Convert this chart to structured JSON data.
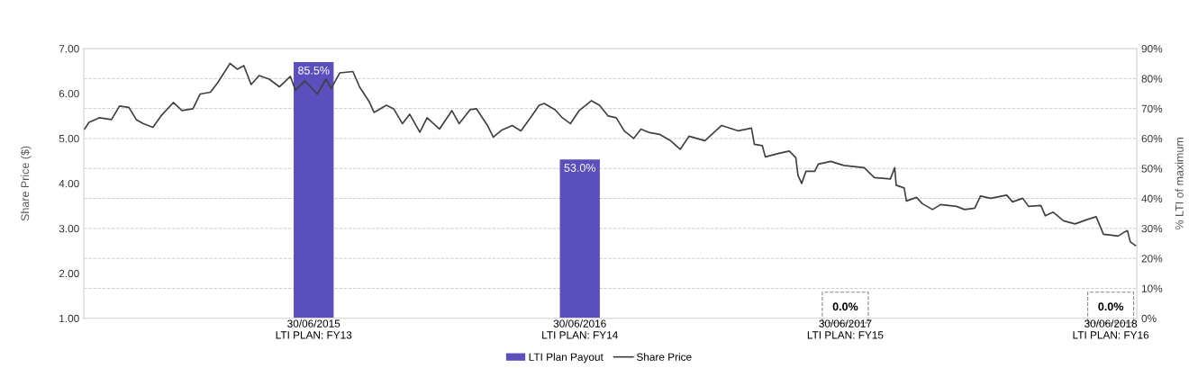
{
  "chart_data": {
    "type": "line",
    "ylabel": "Share Price ($)",
    "y2label": "% LTI of maximum",
    "xlim": [
      "2014-08-18",
      "2018-08-05"
    ],
    "xticks": [
      {
        "value": "2015-06-30",
        "label": "30/06/2015\nLTI PLAN: FY13"
      },
      {
        "value": "2016-06-30",
        "label": "30/06/2016\nLTI PLAN: FY14"
      },
      {
        "value": "2017-06-30",
        "label": "30/06/2017\nLTI PLAN: FY15"
      },
      {
        "value": "2018-06-30",
        "label": "30/06/2018\nLTI PLAN: FY16"
      }
    ],
    "ylim": [
      1,
      7
    ],
    "yticks": [
      {
        "value": 1,
        "label": "1.00"
      },
      {
        "value": 2,
        "label": "2.00"
      },
      {
        "value": 3,
        "label": "3.00"
      },
      {
        "value": 4,
        "label": "4.00"
      },
      {
        "value": 5,
        "label": "5.00"
      },
      {
        "value": 6,
        "label": "6.00"
      },
      {
        "value": 7,
        "label": "7.00"
      }
    ],
    "y2lim": [
      0,
      90
    ],
    "y2ticks": [
      {
        "value": 0,
        "label": "0%"
      },
      {
        "value": 10,
        "label": "10%"
      },
      {
        "value": 20,
        "label": "20%"
      },
      {
        "value": 30,
        "label": "30%"
      },
      {
        "value": 40,
        "label": "40%"
      },
      {
        "value": 50,
        "label": "50%"
      },
      {
        "value": 60,
        "label": "60%"
      },
      {
        "value": 70,
        "label": "70%"
      },
      {
        "value": 80,
        "label": "80%"
      },
      {
        "value": 90,
        "label": "90%"
      }
    ],
    "grid": true,
    "legend": "bottom",
    "marker": "none",
    "line_style": "solid",
    "series": [
      {
        "name": "LTI Plan Payout",
        "type": "bar",
        "axis": "y2",
        "color": "#5b4fbe",
        "x": [
          "2015-06-30",
          "2016-06-30",
          "2017-06-30",
          "2018-06-30"
        ],
        "values": [
          85.5,
          53.0,
          0,
          0
        ],
        "value_labels": [
          "85.5%",
          "53.0%",
          "0.0%",
          "0.0%"
        ]
      },
      {
        "name": "Share Price",
        "color": "#404040",
        "x": [
          "2014-08-19",
          "2014-08-25",
          "2014-09-08",
          "2014-09-25",
          "2014-10-06",
          "2014-10-19",
          "2014-10-29",
          "2014-11-08",
          "2014-11-21",
          "2014-12-02",
          "2014-12-19",
          "2014-12-31",
          "2015-01-15",
          "2015-01-25",
          "2015-02-08",
          "2015-02-18",
          "2015-03-07",
          "2015-03-17",
          "2015-03-26",
          "2015-04-05",
          "2015-04-16",
          "2015-04-30",
          "2015-05-14",
          "2015-05-29",
          "2015-06-05",
          "2015-06-18",
          "2015-07-05",
          "2015-07-17",
          "2015-07-24",
          "2015-08-05",
          "2015-08-23",
          "2015-09-01",
          "2015-09-14",
          "2015-09-21",
          "2015-10-08",
          "2015-10-18",
          "2015-10-30",
          "2015-11-09",
          "2015-11-23",
          "2015-12-03",
          "2015-12-20",
          "2016-01-06",
          "2016-01-16",
          "2016-01-31",
          "2016-02-09",
          "2016-02-24",
          "2016-03-03",
          "2016-03-15",
          "2016-03-29",
          "2016-04-10",
          "2016-04-23",
          "2016-05-05",
          "2016-05-12",
          "2016-05-27",
          "2016-06-06",
          "2016-06-17",
          "2016-06-29",
          "2016-07-16",
          "2016-07-27",
          "2016-08-08",
          "2016-08-19",
          "2016-08-30",
          "2016-09-12",
          "2016-09-22",
          "2016-10-04",
          "2016-10-18",
          "2016-11-01",
          "2016-11-15",
          "2016-11-27",
          "2016-12-19",
          "2017-01-11",
          "2017-02-03",
          "2017-02-21",
          "2017-02-25",
          "2017-03-08",
          "2017-03-12",
          "2017-03-31",
          "2017-04-14",
          "2017-04-23",
          "2017-04-26",
          "2017-05-01",
          "2017-05-07",
          "2017-05-19",
          "2017-05-24",
          "2017-06-10",
          "2017-06-28",
          "2017-07-26",
          "2017-08-09",
          "2017-08-31",
          "2017-09-06",
          "2017-09-08",
          "2017-09-19",
          "2017-09-22",
          "2017-10-06",
          "2017-10-14",
          "2017-10-28",
          "2017-11-08",
          "2017-11-30",
          "2017-12-11",
          "2017-12-25",
          "2018-01-02",
          "2018-01-16",
          "2018-02-07",
          "2018-02-15",
          "2018-03-01",
          "2018-03-09",
          "2018-03-26",
          "2018-04-01",
          "2018-04-12",
          "2018-04-26",
          "2018-05-12",
          "2018-05-29",
          "2018-06-10",
          "2018-06-20",
          "2018-07-01",
          "2018-07-10",
          "2018-07-18",
          "2018-07-23",
          "2018-07-27",
          "2018-08-03"
        ],
        "values": [
          5.21,
          5.36,
          5.46,
          5.42,
          5.72,
          5.69,
          5.42,
          5.33,
          5.25,
          5.5,
          5.8,
          5.62,
          5.66,
          5.99,
          6.03,
          6.24,
          6.67,
          6.54,
          6.62,
          6.2,
          6.4,
          6.32,
          6.15,
          6.38,
          6.07,
          6.28,
          5.99,
          6.32,
          6.11,
          6.46,
          6.49,
          6.15,
          5.83,
          5.58,
          5.74,
          5.66,
          5.33,
          5.54,
          5.14,
          5.46,
          5.21,
          5.62,
          5.33,
          5.64,
          5.66,
          5.29,
          5.03,
          5.19,
          5.29,
          5.17,
          5.46,
          5.74,
          5.78,
          5.64,
          5.46,
          5.33,
          5.62,
          5.84,
          5.74,
          5.5,
          5.46,
          5.17,
          5.0,
          5.21,
          5.13,
          5.09,
          4.96,
          4.76,
          5.05,
          4.95,
          5.29,
          5.17,
          5.23,
          4.87,
          4.84,
          4.59,
          4.67,
          4.72,
          4.57,
          4.18,
          4.0,
          4.27,
          4.27,
          4.43,
          4.49,
          4.4,
          4.35,
          4.13,
          4.1,
          4.35,
          3.96,
          3.9,
          3.61,
          3.69,
          3.55,
          3.42,
          3.53,
          3.49,
          3.42,
          3.45,
          3.72,
          3.67,
          3.74,
          3.59,
          3.67,
          3.49,
          3.51,
          3.28,
          3.36,
          3.17,
          3.1,
          3.2,
          3.26,
          2.87,
          2.85,
          2.83,
          2.91,
          2.95,
          2.7,
          2.62
        ]
      }
    ]
  }
}
